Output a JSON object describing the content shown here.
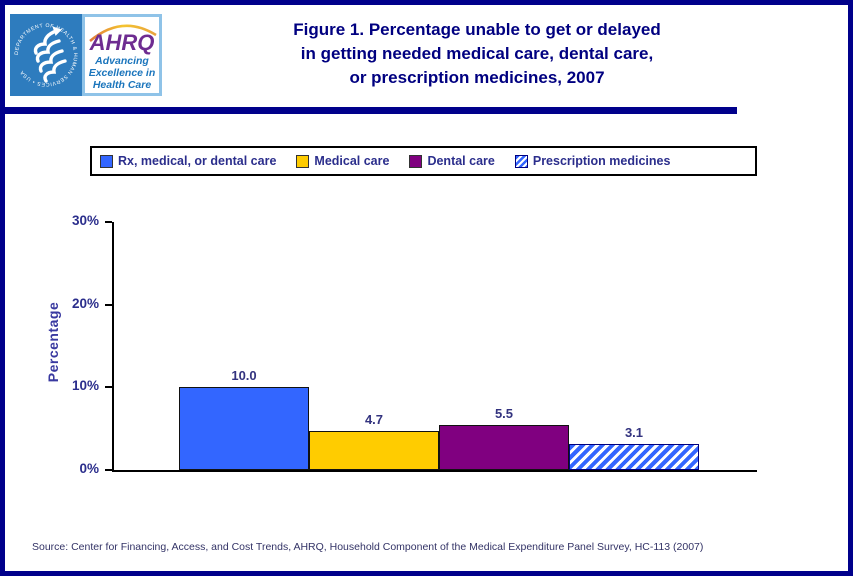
{
  "title": {
    "line1": "Figure 1. Percentage unable to get or delayed",
    "line2": "in getting needed medical care, dental care,",
    "line3": "or prescription medicines, 2007"
  },
  "logo": {
    "hhs_seal_text": "DEPARTMENT OF HEALTH & HUMAN SERVICES • USA",
    "ahrq_acronym": "AHRQ",
    "tagline_line1": "Advancing",
    "tagline_line2": "Excellence in",
    "tagline_line3": "Health Care"
  },
  "colors": {
    "frame_and_divider": "#00008B",
    "title_navy": "#000080",
    "text_navy": "#2B2E8C",
    "hhs_seal_blue": "#2E7CBE",
    "ahrq_purple": "#6E2C91",
    "ahrq_tagline_blue": "#1B75BC",
    "arc_orange": "#E8A33D"
  },
  "chart_data": {
    "type": "bar",
    "title": "Figure 1. Percentage unable to get or delayed in getting needed medical care, dental care, or prescription medicines, 2007",
    "xlabel": "",
    "ylabel": "Percentage",
    "ylim": [
      0,
      30
    ],
    "grid": false,
    "legend_position": "top",
    "yticks": [
      {
        "value": 0,
        "label": "0%"
      },
      {
        "value": 10,
        "label": "10%"
      },
      {
        "value": 20,
        "label": "20%"
      },
      {
        "value": 30,
        "label": "30%"
      }
    ],
    "series": [
      {
        "name": "Rx, medical, or dental care",
        "value": 10.0,
        "value_label": "10.0",
        "color": "#3366FF",
        "pattern": "solid"
      },
      {
        "name": "Medical care",
        "value": 4.7,
        "value_label": "4.7",
        "color": "#FFCC00",
        "pattern": "solid"
      },
      {
        "name": "Dental care",
        "value": 5.5,
        "value_label": "5.5",
        "color": "#800080",
        "pattern": "solid"
      },
      {
        "name": "Prescription medicines",
        "value": 3.1,
        "value_label": "3.1",
        "color": "#3366FF",
        "pattern": "diagonal-hatch"
      }
    ]
  },
  "source": "Source: Center for Financing, Access, and Cost Trends, AHRQ, Household Component of the Medical Expenditure Panel Survey, HC-113 (2007)"
}
